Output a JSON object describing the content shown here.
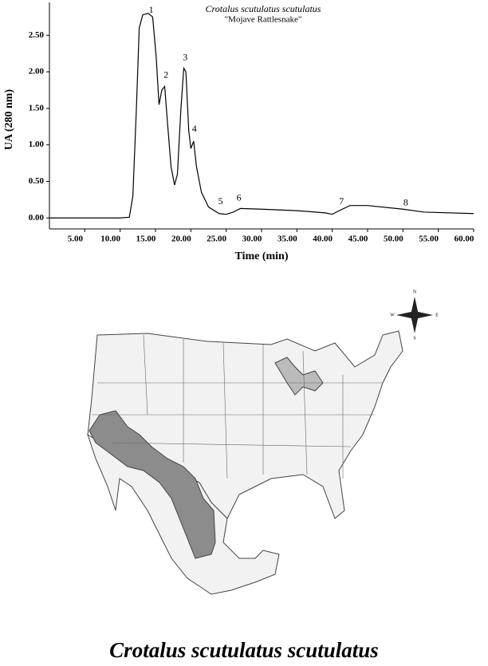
{
  "chart_data": {
    "type": "line",
    "title": "Crotalus scutulatus scutulatus",
    "subtitle": "\"Mojave Rattlesnake\"",
    "x_label": "Time (min)",
    "y_label": "UA (280 nm)",
    "color": "#000000",
    "x": [
      0,
      10,
      11.3,
      11.8,
      12.3,
      12.7,
      13.2,
      14,
      14.6,
      15.1,
      15.5,
      15.9,
      16.3,
      16.7,
      17.2,
      17.7,
      18.1,
      18.6,
      19.0,
      19.3,
      19.7,
      20.0,
      20.4,
      20.8,
      21.5,
      22.5,
      24,
      25,
      26,
      27,
      30,
      35,
      39,
      40,
      41,
      42.5,
      45,
      50,
      53,
      60
    ],
    "values": [
      0,
      0,
      0.01,
      0.3,
      1.5,
      2.6,
      2.78,
      2.8,
      2.75,
      2.2,
      1.55,
      1.75,
      1.8,
      1.3,
      0.7,
      0.45,
      0.6,
      1.5,
      2.05,
      2.0,
      1.2,
      0.95,
      1.05,
      0.7,
      0.35,
      0.15,
      0.06,
      0.05,
      0.08,
      0.13,
      0.12,
      0.1,
      0.07,
      0.05,
      0.1,
      0.17,
      0.17,
      0.12,
      0.08,
      0.06
    ],
    "xlim": [
      0,
      60
    ],
    "ylim": [
      -0.15,
      2.95
    ],
    "xticks": [
      {
        "value": 5,
        "label": "5.00"
      },
      {
        "value": 10,
        "label": "10.00"
      },
      {
        "value": 15,
        "label": "15.00"
      },
      {
        "value": 20,
        "label": "20.00"
      },
      {
        "value": 25,
        "label": "25.00"
      },
      {
        "value": 30,
        "label": "30.00"
      },
      {
        "value": 35,
        "label": "35.00"
      },
      {
        "value": 40,
        "label": "40.00"
      },
      {
        "value": 45,
        "label": "45.00"
      },
      {
        "value": 50,
        "label": "50.00"
      },
      {
        "value": 55,
        "label": "55.00"
      },
      {
        "value": 60,
        "label": "60.00"
      }
    ],
    "yticks": [
      {
        "value": 0,
        "label": "0.00"
      },
      {
        "value": 0.5,
        "label": "0.50"
      },
      {
        "value": 1,
        "label": "1.00"
      },
      {
        "value": 1.5,
        "label": "1.50"
      },
      {
        "value": 2,
        "label": "2.00"
      },
      {
        "value": 2.5,
        "label": "2.50"
      }
    ],
    "annotations": [
      {
        "text": "1",
        "x": 14.4,
        "y": 2.84
      },
      {
        "text": "2",
        "x": 16.5,
        "y": 1.95
      },
      {
        "text": "3",
        "x": 19.2,
        "y": 2.19
      },
      {
        "text": "4",
        "x": 20.5,
        "y": 1.21
      },
      {
        "text": "5",
        "x": 24.2,
        "y": 0.22
      },
      {
        "text": "6",
        "x": 26.8,
        "y": 0.27
      },
      {
        "text": "7",
        "x": 41.3,
        "y": 0.22
      },
      {
        "text": "8",
        "x": 50.4,
        "y": 0.2
      }
    ]
  },
  "map": {
    "compass": [
      "N",
      "E",
      "S",
      "W"
    ]
  },
  "caption": "Crotalus scutulatus scutulatus"
}
